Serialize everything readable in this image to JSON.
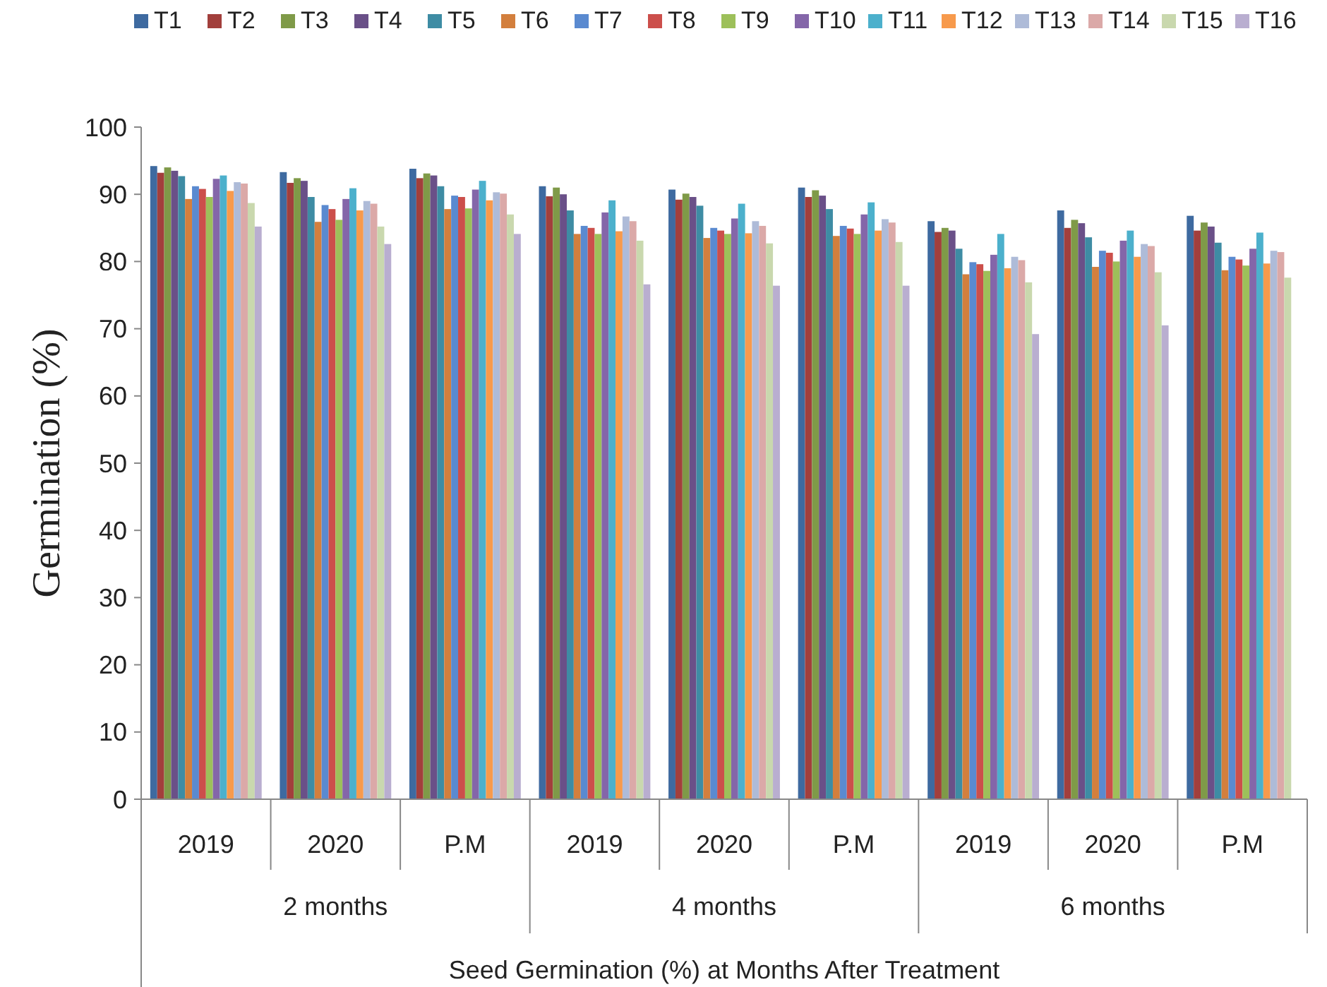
{
  "chart_data": {
    "type": "bar",
    "xlabel": "Seed Germination (%) at Months After Treatment",
    "ylabel": "Germination  (%)",
    "categories": [
      "2019",
      "2020",
      "P.M",
      "2019",
      "2020",
      "P.M",
      "2019",
      "2020",
      "P.M"
    ],
    "annotations": [
      "2 months",
      "4 months",
      "6 months"
    ],
    "ylim": [
      0,
      100
    ],
    "yticks": [
      0,
      10,
      20,
      30,
      40,
      50,
      60,
      70,
      80,
      90,
      100
    ],
    "grid": false,
    "legend": "top",
    "series": [
      {
        "name": "T1",
        "color": "#3e6aa0",
        "values": [
          94.2,
          93.3,
          93.8,
          91.2,
          90.7,
          91,
          86,
          87.6,
          86.8
        ]
      },
      {
        "name": "T2",
        "color": "#a23f3c",
        "values": [
          93.2,
          91.7,
          92.4,
          89.7,
          89.2,
          89.6,
          84.4,
          85,
          84.6
        ]
      },
      {
        "name": "T3",
        "color": "#7f9a48",
        "values": [
          94,
          92.4,
          93.1,
          91,
          90.1,
          90.6,
          85,
          86.2,
          85.8
        ]
      },
      {
        "name": "T4",
        "color": "#6a5088",
        "values": [
          93.5,
          92,
          92.8,
          90,
          89.6,
          89.8,
          84.6,
          85.7,
          85.2
        ]
      },
      {
        "name": "T5",
        "color": "#3e8ca4",
        "values": [
          92.7,
          89.6,
          91.2,
          87.6,
          88.3,
          87.8,
          81.9,
          83.6,
          82.8
        ]
      },
      {
        "name": "T6",
        "color": "#d37f3d",
        "values": [
          89.3,
          85.9,
          87.8,
          84.1,
          83.5,
          83.8,
          78.1,
          79.2,
          78.7
        ]
      },
      {
        "name": "T7",
        "color": "#5a8ad0",
        "values": [
          91.2,
          88.4,
          89.8,
          85.3,
          85,
          85.3,
          79.9,
          81.6,
          80.7
        ]
      },
      {
        "name": "T8",
        "color": "#cc4f4b",
        "values": [
          90.8,
          87.8,
          89.6,
          85,
          84.6,
          84.9,
          79.6,
          81.3,
          80.3
        ]
      },
      {
        "name": "T9",
        "color": "#9dc05a",
        "values": [
          89.6,
          86.2,
          87.9,
          84.1,
          84.1,
          84.1,
          78.6,
          80,
          79.4
        ]
      },
      {
        "name": "T10",
        "color": "#8466a9",
        "values": [
          92.3,
          89.3,
          90.7,
          87.3,
          86.4,
          87,
          81,
          83.1,
          81.9
        ]
      },
      {
        "name": "T11",
        "color": "#4cb0cc",
        "values": [
          92.8,
          90.9,
          92,
          89.1,
          88.6,
          88.8,
          84.1,
          84.6,
          84.3
        ]
      },
      {
        "name": "T12",
        "color": "#f79a4c",
        "values": [
          90.5,
          87.6,
          89.1,
          84.5,
          84.2,
          84.6,
          79,
          80.7,
          79.7
        ]
      },
      {
        "name": "T13",
        "color": "#aebbd8",
        "values": [
          91.8,
          89,
          90.3,
          86.7,
          86,
          86.3,
          80.7,
          82.6,
          81.6
        ]
      },
      {
        "name": "T14",
        "color": "#dba9a8",
        "values": [
          91.6,
          88.6,
          90.1,
          86,
          85.3,
          85.8,
          80.2,
          82.3,
          81.4
        ]
      },
      {
        "name": "T15",
        "color": "#c9d8ae",
        "values": [
          88.7,
          85.2,
          87,
          83.1,
          82.7,
          82.9,
          76.9,
          78.4,
          77.6
        ]
      },
      {
        "name": "T16",
        "color": "#b9aed0",
        "values": [
          85.2,
          82.6,
          84.1,
          76.6,
          76.4,
          76.4,
          69.2,
          70.5,
          null
        ]
      }
    ]
  }
}
